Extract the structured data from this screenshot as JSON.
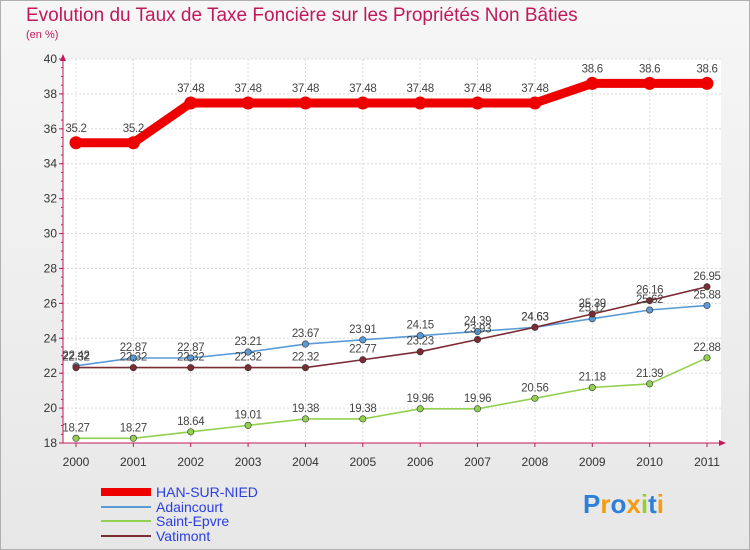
{
  "chart_data": {
    "type": "line",
    "title": "Evolution du Taux de Taxe Foncière sur les Propriétés Non Bâties",
    "ylabel": "(en %)",
    "xlabel": "",
    "ylim": [
      18,
      40
    ],
    "yticks": [
      "18",
      "20",
      "22",
      "24",
      "26",
      "28",
      "30",
      "32",
      "34",
      "36",
      "38",
      "40"
    ],
    "categories": [
      "2000",
      "2001",
      "2002",
      "2003",
      "2004",
      "2005",
      "2006",
      "2007",
      "2008",
      "2009",
      "2010",
      "2011"
    ],
    "series": [
      {
        "name": "HAN-SUR-NIED",
        "color": "#ee0000",
        "values": [
          35.2,
          35.2,
          37.48,
          37.48,
          37.48,
          37.48,
          37.48,
          37.48,
          37.48,
          38.6,
          38.6,
          38.6
        ],
        "labels": [
          "35.2",
          "35.2",
          "37.48",
          "37.48",
          "37.48",
          "37.48",
          "37.48",
          "37.48",
          "37.48",
          "38.6",
          "38.6",
          "38.6"
        ]
      },
      {
        "name": "Adaincourt",
        "color": "#5b9bd5",
        "values": [
          22.42,
          22.87,
          22.87,
          23.21,
          23.67,
          23.91,
          24.15,
          24.39,
          24.63,
          25.12,
          25.62,
          25.88
        ],
        "labels": [
          "22.42",
          "22.87",
          "22.87",
          "23.21",
          "23.67",
          "23.91",
          "24.15",
          "24.39",
          "24.63",
          "25.12",
          "25.62",
          "25.88"
        ]
      },
      {
        "name": "Saint-Epvre",
        "color": "#92d050",
        "values": [
          18.27,
          18.27,
          18.64,
          19.01,
          19.38,
          19.38,
          19.96,
          19.96,
          20.56,
          21.18,
          21.39,
          22.88
        ],
        "labels": [
          "18.27",
          "18.27",
          "18.64",
          "19.01",
          "19.38",
          "19.38",
          "19.96",
          "19.96",
          "20.56",
          "21.18",
          "21.39",
          "22.88"
        ]
      },
      {
        "name": "Vatimont",
        "color": "#7b2b34",
        "values": [
          22.32,
          22.32,
          22.32,
          22.32,
          22.32,
          22.77,
          23.23,
          23.93,
          24.63,
          25.39,
          26.16,
          26.95
        ],
        "labels": [
          "22.32",
          "22.32",
          "22.32",
          "22.32",
          "22.32",
          "22.77",
          "23.23",
          "23.93",
          "24.63",
          "25.39",
          "26.16",
          "26.95"
        ]
      }
    ]
  },
  "brand": {
    "letters": [
      "P",
      "r",
      "o",
      "x",
      "i",
      "t",
      "i"
    ],
    "colors": [
      "#2e7fd8",
      "#f39c12",
      "#2e7fd8",
      "#f39c12",
      "#9acd32",
      "#2e7fd8",
      "#f39c12"
    ]
  }
}
